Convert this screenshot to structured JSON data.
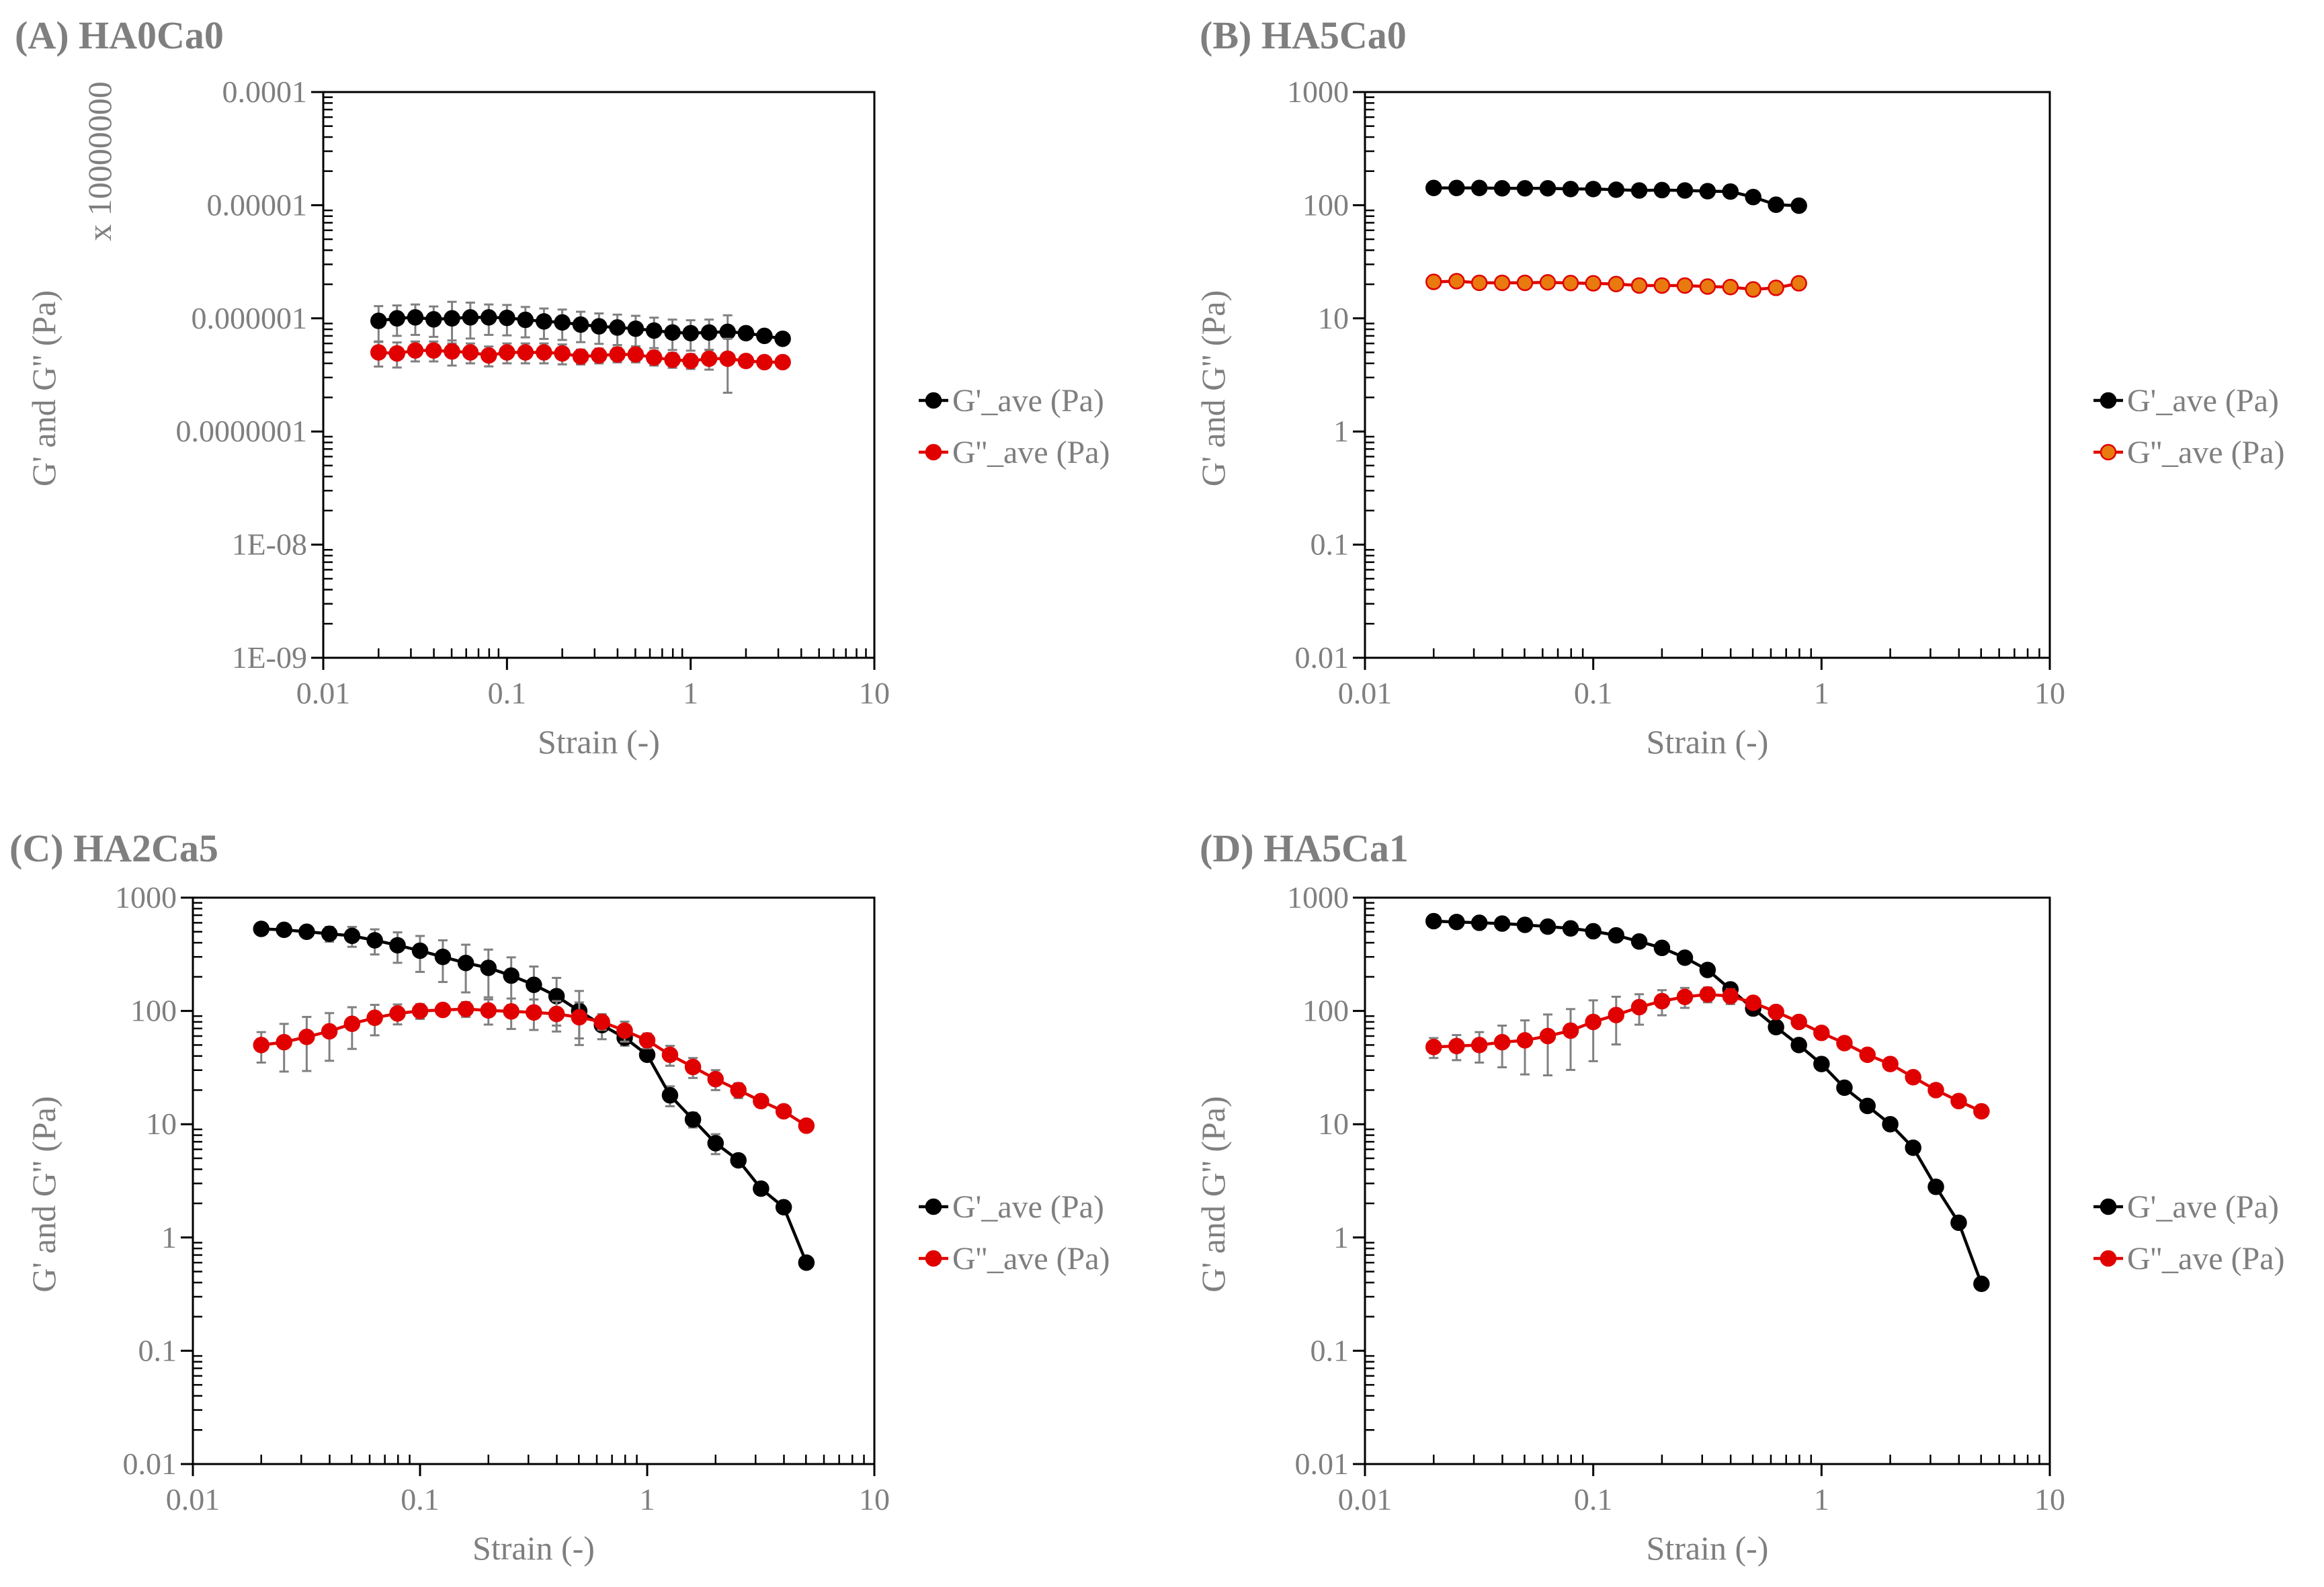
{
  "chart_data": [
    {
      "id": "A",
      "type": "scatter",
      "title": "(A) HA0Ca0",
      "xlabel": "Strain (-)",
      "ylabel": "G' and G'' (Pa)",
      "y_multiplier_label": "x 10000000",
      "xscale": "log",
      "yscale": "log",
      "xlim": [
        0.01,
        10
      ],
      "ylim": [
        1e-09,
        0.0001
      ],
      "xticks": [
        "0.01",
        "0.1",
        "1",
        "10"
      ],
      "yticks": [
        "1E-09",
        "1E-08",
        "0.0000001",
        "0.000001",
        "0.00001",
        "0.0001"
      ],
      "legend_position": "right",
      "x": [
        0.02,
        0.0252,
        0.0317,
        0.0399,
        0.0502,
        0.0632,
        0.0796,
        0.1,
        0.126,
        0.159,
        0.2,
        0.252,
        0.317,
        0.399,
        0.502,
        0.632,
        0.796,
        1.0,
        1.26,
        1.59,
        2.0,
        2.52,
        3.17
      ],
      "series": [
        {
          "name": "G'_ave (Pa)",
          "color": "#000000",
          "fill": "#000000",
          "values": [
            9.5e-07,
            1e-06,
            1.02e-06,
            9.8e-07,
            1e-06,
            1.02e-06,
            1.02e-06,
            1.01e-06,
            9.7e-07,
            9.4e-07,
            9.2e-07,
            8.8e-07,
            8.5e-07,
            8.3e-07,
            8.1e-07,
            7.8e-07,
            7.5e-07,
            7.4e-07,
            7.5e-07,
            7.6e-07,
            7.4e-07,
            7e-07,
            6.6e-07
          ],
          "rel_error": [
            0.35,
            0.3,
            0.3,
            0.3,
            0.4,
            0.35,
            0.3,
            0.3,
            0.3,
            0.3,
            0.3,
            0.3,
            0.3,
            0.3,
            0.3,
            0.3,
            0.3,
            0.3,
            0.3,
            0.4,
            0.05,
            0.05,
            0.05
          ]
        },
        {
          "name": "G''_ave (Pa)",
          "color": "#e00000",
          "fill": "#e00000",
          "values": [
            5e-07,
            4.9e-07,
            5.2e-07,
            5.2e-07,
            5.1e-07,
            5e-07,
            4.7e-07,
            5e-07,
            5e-07,
            5e-07,
            4.9e-07,
            4.6e-07,
            4.7e-07,
            4.8e-07,
            4.8e-07,
            4.5e-07,
            4.3e-07,
            4.2e-07,
            4.4e-07,
            4.4e-07,
            4.2e-07,
            4.1e-07,
            4.1e-07
          ],
          "rel_error": [
            0.25,
            0.25,
            0.2,
            0.2,
            0.25,
            0.2,
            0.2,
            0.2,
            0.2,
            0.2,
            0.2,
            0.15,
            0.15,
            0.15,
            0.15,
            0.15,
            0.15,
            0.15,
            0.2,
            0.5,
            0.05,
            0.05,
            0.05
          ]
        }
      ]
    },
    {
      "id": "B",
      "type": "scatter",
      "title": "(B) HA5Ca0",
      "xlabel": "Strain (-)",
      "ylabel": "G' and G'' (Pa)",
      "xscale": "log",
      "yscale": "log",
      "xlim": [
        0.01,
        10
      ],
      "ylim": [
        0.01,
        1000
      ],
      "xticks": [
        "0.01",
        "0.1",
        "1",
        "10"
      ],
      "yticks": [
        "0.01",
        "0.1",
        "1",
        "10",
        "100",
        "1000"
      ],
      "legend_position": "right",
      "x": [
        0.02,
        0.0252,
        0.0317,
        0.0399,
        0.0502,
        0.0632,
        0.0796,
        0.1,
        0.126,
        0.159,
        0.2,
        0.252,
        0.317,
        0.399,
        0.502,
        0.632,
        0.796
      ],
      "series": [
        {
          "name": "G'_ave (Pa)",
          "color": "#000000",
          "fill": "#000000",
          "values": [
            142,
            142,
            142,
            141,
            141,
            141,
            139,
            139,
            137,
            135,
            136,
            135,
            133,
            132,
            118,
            101,
            99
          ]
        },
        {
          "name": "G''_ave (Pa)",
          "color": "#e00000",
          "fill": "#e87a10",
          "values": [
            21,
            21.3,
            20.6,
            20.6,
            20.6,
            20.8,
            20.5,
            20.4,
            20.1,
            19.5,
            19.5,
            19.5,
            19.1,
            18.9,
            18.0,
            18.6,
            20.4
          ]
        }
      ]
    },
    {
      "id": "C",
      "type": "scatter",
      "title": "(C) HA2Ca5",
      "xlabel": "Strain (-)",
      "ylabel": "G' and G'' (Pa)",
      "xscale": "log",
      "yscale": "log",
      "xlim": [
        0.01,
        10
      ],
      "ylim": [
        0.01,
        1000
      ],
      "xticks": [
        "0.01",
        "0.1",
        "1",
        "10"
      ],
      "yticks": [
        "0.01",
        "0.1",
        "1",
        "10",
        "100",
        "1000"
      ],
      "legend_position": "right",
      "x": [
        0.02,
        0.0252,
        0.0317,
        0.0399,
        0.0502,
        0.0632,
        0.0796,
        0.1,
        0.126,
        0.159,
        0.2,
        0.252,
        0.317,
        0.399,
        0.502,
        0.632,
        0.796,
        1.0,
        1.26,
        1.59,
        2.0,
        2.52,
        3.17,
        3.99,
        5.02
      ],
      "series": [
        {
          "name": "G'_ave (Pa)",
          "color": "#000000",
          "fill": "#000000",
          "values": [
            530,
            520,
            500,
            480,
            460,
            420,
            380,
            340,
            300,
            265,
            240,
            205,
            170,
            135,
            100,
            75,
            58,
            41,
            18,
            11,
            6.8,
            4.8,
            2.7,
            1.85,
            0.6
          ],
          "rel_error": [
            0.1,
            0.08,
            0.1,
            0.15,
            0.2,
            0.25,
            0.3,
            0.35,
            0.4,
            0.45,
            0.45,
            0.45,
            0.45,
            0.45,
            0.5,
            0.25,
            0.15,
            0.1,
            0.2,
            0.15,
            0.2,
            0.05,
            0.05,
            0.05,
            0
          ]
        },
        {
          "name": "G''_ave (Pa)",
          "color": "#e00000",
          "fill": "#e00000",
          "values": [
            50,
            53,
            59,
            66,
            77,
            87,
            95,
            100,
            102,
            104,
            101,
            99,
            97,
            94,
            88,
            80,
            67,
            55,
            41,
            32,
            25,
            20,
            16,
            13,
            9.7
          ],
          "rel_error": [
            0.3,
            0.45,
            0.5,
            0.45,
            0.4,
            0.3,
            0.2,
            0.15,
            0.1,
            0.15,
            0.25,
            0.3,
            0.3,
            0.3,
            0.35,
            0.15,
            0.2,
            0.15,
            0.2,
            0.2,
            0.2,
            0.15,
            0.05,
            0.05,
            0
          ]
        }
      ]
    },
    {
      "id": "D",
      "type": "scatter",
      "title": "(D) HA5Ca1",
      "xlabel": "Strain (-)",
      "ylabel": "G' and G'' (Pa)",
      "xscale": "log",
      "yscale": "log",
      "xlim": [
        0.01,
        10
      ],
      "ylim": [
        0.01,
        1000
      ],
      "xticks": [
        "0.01",
        "0.1",
        "1",
        "10"
      ],
      "yticks": [
        "0.01",
        "0.1",
        "1",
        "10",
        "100",
        "1000"
      ],
      "legend_position": "right",
      "x": [
        0.02,
        0.0252,
        0.0317,
        0.0399,
        0.0502,
        0.0632,
        0.0796,
        0.1,
        0.126,
        0.159,
        0.2,
        0.252,
        0.317,
        0.399,
        0.502,
        0.632,
        0.796,
        1.0,
        1.26,
        1.59,
        2.0,
        2.52,
        3.17,
        3.99,
        5.02
      ],
      "series": [
        {
          "name": "G'_ave (Pa)",
          "color": "#000000",
          "fill": "#000000",
          "values": [
            620,
            610,
            600,
            590,
            575,
            555,
            535,
            505,
            465,
            410,
            360,
            295,
            230,
            155,
            105,
            72,
            50,
            34,
            21,
            14.5,
            10,
            6.2,
            2.8,
            1.35,
            0.39
          ],
          "rel_error": [
            0.03,
            0.03,
            0.03,
            0.03,
            0.03,
            0.03,
            0.03,
            0.03,
            0.03,
            0.03,
            0.03,
            0.03,
            0.03,
            0.03,
            0.03,
            0.03,
            0.03,
            0.03,
            0.03,
            0.03,
            0.03,
            0.03,
            0.03,
            0.03,
            0
          ]
        },
        {
          "name": "G''_ave (Pa)",
          "color": "#e00000",
          "fill": "#e00000",
          "values": [
            48,
            49,
            50,
            53,
            55,
            60,
            67,
            80,
            92,
            108,
            122,
            133,
            140,
            135,
            118,
            98,
            80,
            64,
            52,
            41,
            34,
            26,
            20,
            16,
            13
          ],
          "rel_error": [
            0.2,
            0.25,
            0.3,
            0.4,
            0.5,
            0.55,
            0.55,
            0.55,
            0.45,
            0.3,
            0.25,
            0.2,
            0.15,
            0.15,
            0.05,
            0.1,
            0,
            0,
            0,
            0,
            0,
            0,
            0,
            0,
            0
          ]
        }
      ]
    }
  ]
}
